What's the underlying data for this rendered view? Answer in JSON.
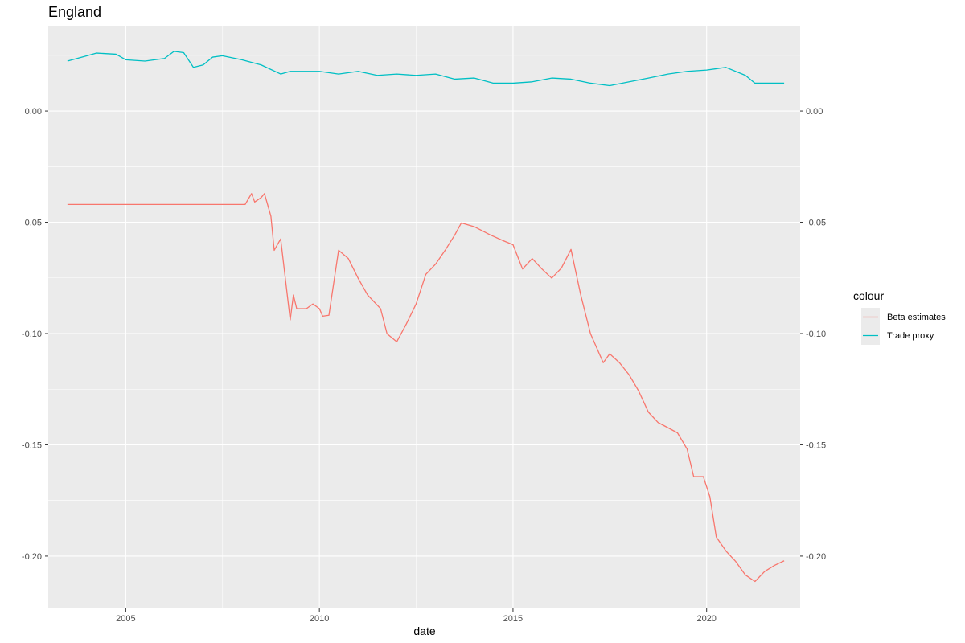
{
  "chart_data": {
    "type": "line",
    "title": "England",
    "xlabel": "date",
    "ylabel": "",
    "xlim": [
      "2003-01-01",
      "2022-06-01"
    ],
    "ylim": [
      -0.2235,
      0.0383
    ],
    "x_ticks": [
      "2005-01-01",
      "2010-01-01",
      "2015-01-01",
      "2020-01-01"
    ],
    "x_tick_labels": [
      "2005",
      "2010",
      "2015",
      "2020"
    ],
    "y_ticks": [
      0.0,
      -0.05,
      -0.1,
      -0.15,
      -0.2
    ],
    "y_tick_labels": [
      "0.00",
      "-0.05",
      "-0.10",
      "-0.15",
      "-0.20"
    ],
    "secondary_y_axis": true,
    "grid": true,
    "legend": {
      "title": "colour",
      "position": "right"
    },
    "series": [
      {
        "name": "Beta estimates",
        "color": "#F8766D",
        "points": [
          [
            "2003-07-01",
            -0.042
          ],
          [
            "2008-02-01",
            -0.042
          ],
          [
            "2008-04-01",
            -0.0371
          ],
          [
            "2008-05-01",
            -0.0409
          ],
          [
            "2008-07-01",
            -0.0389
          ],
          [
            "2008-08-01",
            -0.0371
          ],
          [
            "2008-10-01",
            -0.0473
          ],
          [
            "2008-11-01",
            -0.0626
          ],
          [
            "2009-01-01",
            -0.0575
          ],
          [
            "2009-04-01",
            -0.0939
          ],
          [
            "2009-05-01",
            -0.0827
          ],
          [
            "2009-06-01",
            -0.0888
          ],
          [
            "2009-09-01",
            -0.0888
          ],
          [
            "2009-11-01",
            -0.0867
          ],
          [
            "2010-01-01",
            -0.0888
          ],
          [
            "2010-02-01",
            -0.0922
          ],
          [
            "2010-04-01",
            -0.0918
          ],
          [
            "2010-07-01",
            -0.0626
          ],
          [
            "2010-10-01",
            -0.0663
          ],
          [
            "2011-01-01",
            -0.0751
          ],
          [
            "2011-04-01",
            -0.0827
          ],
          [
            "2011-08-01",
            -0.0888
          ],
          [
            "2011-10-01",
            -0.1001
          ],
          [
            "2012-01-01",
            -0.1037
          ],
          [
            "2012-04-01",
            -0.0956
          ],
          [
            "2012-07-01",
            -0.0867
          ],
          [
            "2012-10-01",
            -0.0734
          ],
          [
            "2013-01-01",
            -0.0688
          ],
          [
            "2013-04-01",
            -0.0626
          ],
          [
            "2013-07-01",
            -0.0557
          ],
          [
            "2013-09-01",
            -0.0503
          ],
          [
            "2014-01-01",
            -0.052
          ],
          [
            "2014-06-01",
            -0.0557
          ],
          [
            "2014-10-01",
            -0.0583
          ],
          [
            "2015-01-01",
            -0.0601
          ],
          [
            "2015-04-01",
            -0.071
          ],
          [
            "2015-07-01",
            -0.0663
          ],
          [
            "2015-10-01",
            -0.071
          ],
          [
            "2016-01-01",
            -0.0751
          ],
          [
            "2016-04-01",
            -0.0706
          ],
          [
            "2016-07-01",
            -0.0622
          ],
          [
            "2016-10-01",
            -0.0827
          ],
          [
            "2017-01-01",
            -0.1001
          ],
          [
            "2017-05-01",
            -0.1131
          ],
          [
            "2017-07-01",
            -0.1091
          ],
          [
            "2017-10-01",
            -0.1131
          ],
          [
            "2018-01-01",
            -0.1186
          ],
          [
            "2018-04-01",
            -0.1259
          ],
          [
            "2018-07-01",
            -0.1353
          ],
          [
            "2018-10-01",
            -0.14
          ],
          [
            "2019-01-01",
            -0.1423
          ],
          [
            "2019-04-01",
            -0.1446
          ],
          [
            "2019-07-01",
            -0.1519
          ],
          [
            "2019-09-01",
            -0.1643
          ],
          [
            "2019-12-01",
            -0.1643
          ],
          [
            "2020-02-01",
            -0.1734
          ],
          [
            "2020-04-01",
            -0.1914
          ],
          [
            "2020-07-01",
            -0.1977
          ],
          [
            "2020-10-01",
            -0.2024
          ],
          [
            "2021-01-01",
            -0.2085
          ],
          [
            "2021-04-01",
            -0.2114
          ],
          [
            "2021-07-01",
            -0.2069
          ],
          [
            "2021-10-01",
            -0.2042
          ],
          [
            "2022-01-01",
            -0.2021
          ]
        ]
      },
      {
        "name": "Trade proxy",
        "color": "#00BFC4",
        "points": [
          [
            "2003-07-01",
            0.0224
          ],
          [
            "2004-01-01",
            0.0248
          ],
          [
            "2004-04-01",
            0.026
          ],
          [
            "2004-10-01",
            0.0255
          ],
          [
            "2005-01-01",
            0.023
          ],
          [
            "2005-07-01",
            0.0224
          ],
          [
            "2006-01-01",
            0.0236
          ],
          [
            "2006-04-01",
            0.0268
          ],
          [
            "2006-07-01",
            0.0262
          ],
          [
            "2006-10-01",
            0.0196
          ],
          [
            "2007-01-01",
            0.0207
          ],
          [
            "2007-04-01",
            0.0242
          ],
          [
            "2007-07-01",
            0.0248
          ],
          [
            "2008-01-01",
            0.023
          ],
          [
            "2008-07-01",
            0.0207
          ],
          [
            "2009-01-01",
            0.0166
          ],
          [
            "2009-04-01",
            0.0178
          ],
          [
            "2009-10-01",
            0.0178
          ],
          [
            "2010-01-01",
            0.0178
          ],
          [
            "2010-07-01",
            0.0166
          ],
          [
            "2011-01-01",
            0.0178
          ],
          [
            "2011-07-01",
            0.016
          ],
          [
            "2012-01-01",
            0.0166
          ],
          [
            "2012-07-01",
            0.016
          ],
          [
            "2013-01-01",
            0.0166
          ],
          [
            "2013-07-01",
            0.0143
          ],
          [
            "2014-01-01",
            0.0148
          ],
          [
            "2014-07-01",
            0.0125
          ],
          [
            "2015-01-01",
            0.0125
          ],
          [
            "2015-07-01",
            0.0131
          ],
          [
            "2016-01-01",
            0.0148
          ],
          [
            "2016-07-01",
            0.0143
          ],
          [
            "2017-01-01",
            0.0125
          ],
          [
            "2017-07-01",
            0.0114
          ],
          [
            "2018-01-01",
            0.0131
          ],
          [
            "2018-07-01",
            0.0148
          ],
          [
            "2019-01-01",
            0.0166
          ],
          [
            "2019-07-01",
            0.0178
          ],
          [
            "2020-01-01",
            0.0184
          ],
          [
            "2020-07-01",
            0.0196
          ],
          [
            "2021-01-01",
            0.016
          ],
          [
            "2021-04-01",
            0.0125
          ],
          [
            "2022-01-01",
            0.0125
          ]
        ]
      }
    ]
  }
}
